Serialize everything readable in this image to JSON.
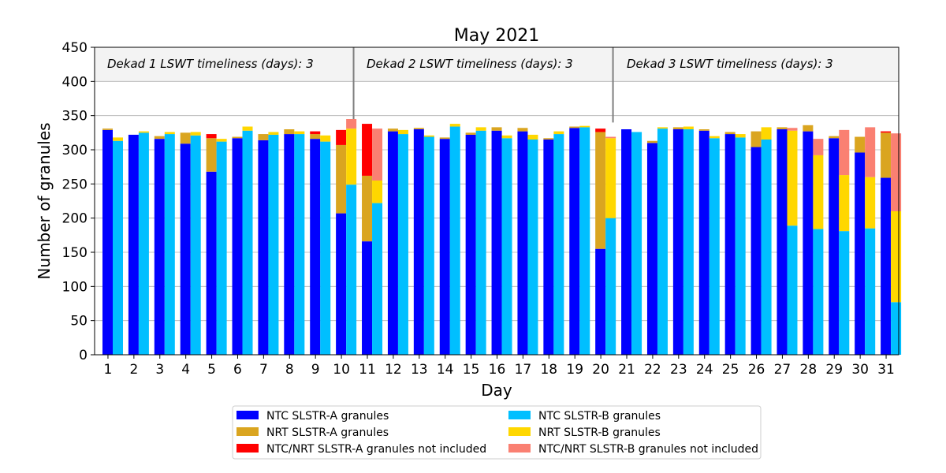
{
  "chart_data": {
    "type": "bar",
    "title": "May 2021",
    "xlabel": "Day",
    "ylabel": "Number of granules",
    "ylim": [
      0,
      450
    ],
    "yticks": [
      0,
      50,
      100,
      150,
      200,
      250,
      300,
      350,
      400,
      450
    ],
    "categories": [
      "1",
      "2",
      "3",
      "4",
      "5",
      "6",
      "7",
      "8",
      "9",
      "10",
      "11",
      "12",
      "13",
      "14",
      "15",
      "16",
      "17",
      "18",
      "19",
      "20",
      "21",
      "22",
      "23",
      "24",
      "25",
      "26",
      "27",
      "28",
      "29",
      "30",
      "31"
    ],
    "grid": "horizontal",
    "legend_placement": "bottom",
    "highlight_band": [
      400,
      450
    ],
    "dekad_dividers_after_day": [
      10,
      20
    ],
    "annotations": [
      "Dekad 1 LSWT timeliness (days): 3",
      "Dekad 2 LSWT timeliness (days): 3",
      "Dekad 3 LSWT timeliness (days): 3"
    ],
    "colors": {
      "ntc_a": "#0000ff",
      "nrt_a": "#daa520",
      "excl_a": "#ff0000",
      "ntc_b": "#00bfff",
      "nrt_b": "#ffd700",
      "excl_b": "#fa8072"
    },
    "legend": [
      {
        "key": "ntc_a",
        "label": "NTC SLSTR-A granules"
      },
      {
        "key": "nrt_a",
        "label": "NRT SLSTR-A granules"
      },
      {
        "key": "excl_a",
        "label": "NTC/NRT SLSTR-A granules not included"
      },
      {
        "key": "ntc_b",
        "label": "NTC SLSTR-B granules"
      },
      {
        "key": "nrt_b",
        "label": "NRT SLSTR-B granules"
      },
      {
        "key": "excl_b",
        "label": "NTC/NRT SLSTR-B granules not included"
      }
    ],
    "series": [
      {
        "name": "NTC SLSTR-A granules",
        "key": "ntc_a",
        "sensor": "A",
        "values": [
          329,
          322,
          316,
          309,
          268,
          317,
          314,
          323,
          316,
          207,
          166,
          327,
          330,
          316,
          322,
          328,
          327,
          315,
          332,
          155,
          330,
          310,
          330,
          328,
          323,
          304,
          330,
          327,
          317,
          296,
          259
        ]
      },
      {
        "name": "NRT SLSTR-A granules",
        "key": "nrt_a",
        "sensor": "A",
        "values": [
          2,
          0,
          4,
          16,
          49,
          2,
          9,
          7,
          7,
          100,
          96,
          4,
          2,
          2,
          3,
          5,
          5,
          2,
          2,
          171,
          0,
          3,
          3,
          2,
          3,
          23,
          3,
          9,
          3,
          23,
          66
        ]
      },
      {
        "name": "NTC/NRT SLSTR-A granules not included",
        "key": "excl_a",
        "sensor": "A",
        "values": [
          0,
          0,
          0,
          0,
          6,
          0,
          0,
          0,
          4,
          22,
          76,
          0,
          0,
          0,
          0,
          0,
          0,
          0,
          0,
          5,
          0,
          0,
          0,
          0,
          0,
          0,
          0,
          0,
          0,
          0,
          2
        ]
      },
      {
        "name": "NTC SLSTR-B granules",
        "key": "ntc_b",
        "sensor": "B",
        "values": [
          313,
          325,
          323,
          321,
          312,
          328,
          322,
          323,
          312,
          249,
          222,
          323,
          319,
          334,
          328,
          317,
          315,
          323,
          333,
          200,
          326,
          331,
          330,
          317,
          318,
          315,
          189,
          184,
          181,
          185,
          77
        ]
      },
      {
        "name": "NRT SLSTR-B granules",
        "key": "nrt_b",
        "sensor": "B",
        "values": [
          5,
          2,
          3,
          5,
          4,
          6,
          4,
          4,
          9,
          82,
          33,
          6,
          2,
          4,
          5,
          4,
          7,
          4,
          2,
          117,
          0,
          2,
          4,
          3,
          5,
          18,
          139,
          108,
          82,
          75,
          133
        ]
      },
      {
        "name": "NTC/NRT SLSTR-B granules not included",
        "key": "excl_b",
        "sensor": "B",
        "values": [
          0,
          0,
          0,
          0,
          0,
          0,
          0,
          0,
          0,
          14,
          76,
          0,
          0,
          0,
          0,
          0,
          0,
          0,
          0,
          2,
          0,
          0,
          0,
          0,
          0,
          0,
          4,
          24,
          66,
          73,
          114
        ]
      }
    ]
  }
}
